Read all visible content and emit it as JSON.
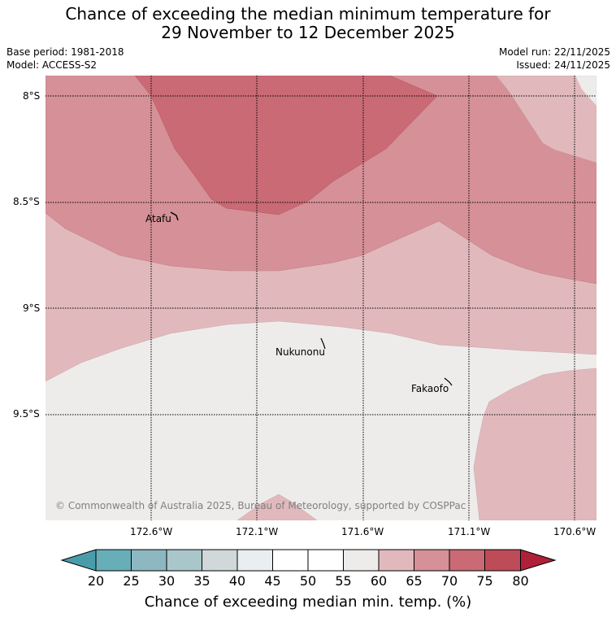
{
  "title_line1": "Chance of exceeding the median minimum temperature for",
  "title_line2": "29 November to 12 December 2025",
  "base_period": "Base period: 1981-2018",
  "model": "Model: ACCESS-S2",
  "model_run": "Model run: 22/11/2025",
  "issued": "Issued: 24/11/2025",
  "lat_labels": [
    "8°S",
    "8.5°S",
    "9°S",
    "9.5°S"
  ],
  "lon_labels": [
    "172.6°W",
    "172.1°W",
    "171.6°W",
    "171.1°W",
    "170.6°W"
  ],
  "places": [
    "Atafu",
    "Nukunonu",
    "Fakaofo"
  ],
  "copyright": "© Commonwealth of Australia 2025, Bureau of Meteorology, supported by COSPPac",
  "colorbar": {
    "ticks": [
      "20",
      "25",
      "30",
      "35",
      "40",
      "45",
      "50",
      "55",
      "60",
      "65",
      "70",
      "75",
      "80"
    ],
    "colors": [
      "#67aeb9",
      "#8db8c1",
      "#a9c7ca",
      "#d0d8d9",
      "#e9eff0",
      "#ffffff",
      "#ffffff",
      "#eeeceb",
      "#e1b9bd",
      "#d69097",
      "#c96a74",
      "#bd4c58"
    ],
    "low_color": "#4a9cab",
    "high_color": "#ae2138",
    "label": "Chance of exceeding median min. temp. (%)"
  },
  "fill_colors": {
    "c55_60": "#eeeceb",
    "c60_65": "#e1b9bd",
    "c65_70": "#d69097",
    "c70_75": "#c96a74"
  }
}
